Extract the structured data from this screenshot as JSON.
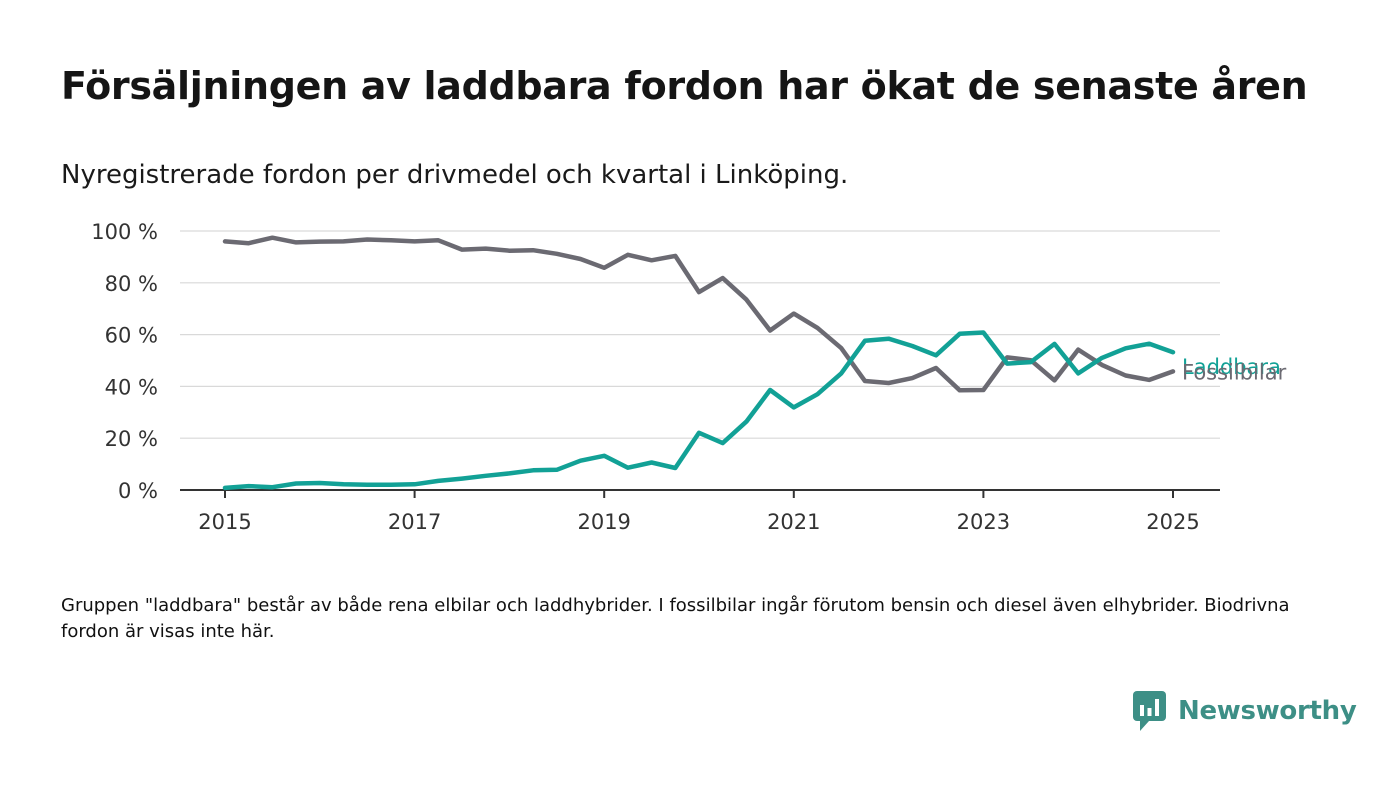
{
  "header": {
    "title": "Försäljningen av laddbara fordon har ökat de senaste åren",
    "subtitle": "Nyregistrerade fordon per drivmedel och kvartal i Linköping."
  },
  "footer": {
    "note": "Gruppen \"laddbara\" består av både rena elbilar och laddhybrider. I fossilbilar ingår förutom bensin och diesel även elhybrider. Biodrivna fordon är visas inte här.",
    "brand": "Newsworthy"
  },
  "colors": {
    "laddbara": "#12a196",
    "fossilbilar": "#6b6a72",
    "grid": "#d9d9d9",
    "axis": "#333333",
    "brand": "#3d8f86"
  },
  "icons": {
    "brand_logo": "bar-chart-speech-bubble-icon"
  },
  "chart_data": {
    "type": "line",
    "xlim": [
      2015,
      2025
    ],
    "ylim": [
      0,
      100
    ],
    "x_ticks": [
      2015,
      2017,
      2019,
      2021,
      2023,
      2025
    ],
    "x_tick_labels": [
      "2015",
      "2017",
      "2019",
      "2021",
      "2023",
      "2025"
    ],
    "y_ticks": [
      0,
      20,
      40,
      60,
      80,
      100
    ],
    "y_tick_labels": [
      "0 %",
      "20 %",
      "40 %",
      "60 %",
      "80 %",
      "100 %"
    ],
    "grid": true,
    "x": [
      2015.0,
      2015.25,
      2015.5,
      2015.75,
      2016.0,
      2016.25,
      2016.5,
      2016.75,
      2017.0,
      2017.25,
      2017.5,
      2017.75,
      2018.0,
      2018.25,
      2018.5,
      2018.75,
      2019.0,
      2019.25,
      2019.5,
      2019.75,
      2020.0,
      2020.25,
      2020.5,
      2020.75,
      2021.0,
      2021.25,
      2021.5,
      2021.75,
      2022.0,
      2022.25,
      2022.5,
      2022.75,
      2023.0,
      2023.25,
      2023.5,
      2023.75,
      2024.0,
      2024.25,
      2024.5,
      2024.75,
      2025.0
    ],
    "series": [
      {
        "name": "Fossilbilar",
        "values": [
          96,
          95.3,
          97.4,
          95.6,
          95.9,
          96,
          96.7,
          96.4,
          96,
          96.4,
          92.8,
          93.2,
          92.4,
          92.6,
          91.2,
          89.2,
          85.8,
          90.8,
          88.7,
          90.4,
          76.4,
          81.8,
          73.5,
          61.6,
          68.1,
          62.6,
          54.8,
          42.1,
          41.3,
          43.2,
          47.1,
          38.5,
          38.6,
          51.2,
          50.1,
          42.3,
          54.2,
          48.3,
          44.2,
          42.5,
          45.8
        ]
      },
      {
        "name": "Laddbara",
        "values": [
          0.8,
          1.5,
          1.1,
          2.5,
          2.7,
          2.2,
          2,
          2,
          2.2,
          3.5,
          4.4,
          5.5,
          6.4,
          7.6,
          7.8,
          11.3,
          13.2,
          8.6,
          10.6,
          8.5,
          22.1,
          18.1,
          26.4,
          38.6,
          31.9,
          37,
          45,
          57.6,
          58.4,
          55.6,
          52,
          60.3,
          60.8,
          48.8,
          49.4,
          56.4,
          45,
          51,
          54.7,
          56.5,
          53.2
        ]
      }
    ]
  }
}
